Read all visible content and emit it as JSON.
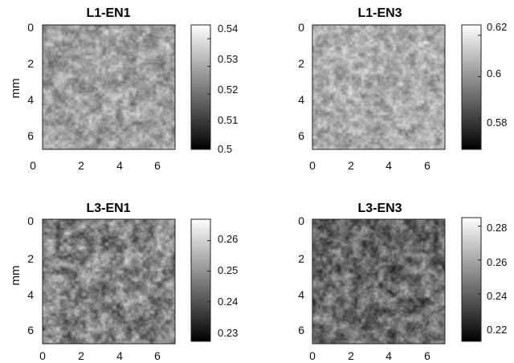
{
  "chart_data": [
    {
      "type": "heatmap",
      "title": "L1-EN1",
      "ylabel": "mm",
      "xlabel": "",
      "x_ticks": [
        "0",
        "2",
        "4",
        "6"
      ],
      "y_ticks": [
        "0",
        "2",
        "4",
        "6"
      ],
      "xlim": [
        0,
        7
      ],
      "ylim": [
        0,
        7
      ],
      "colormap": "gray",
      "clim": [
        0.5,
        0.545
      ],
      "colorbar_ticks": [
        "0.54",
        "0.53",
        "0.52",
        "0.51",
        "0.5"
      ],
      "colorbar_values": [
        0.54,
        0.53,
        0.52,
        0.51,
        0.5
      ],
      "texture": {
        "mean": 0.62,
        "spread": 0.15,
        "scale": 2.2,
        "seed": 11
      }
    },
    {
      "type": "heatmap",
      "title": "L1-EN3",
      "ylabel": "",
      "xlabel": "",
      "x_ticks": [
        "0",
        "2",
        "4",
        "6"
      ],
      "y_ticks": [
        "0",
        "2",
        "4",
        "6"
      ],
      "xlim": [
        0,
        7
      ],
      "ylim": [
        0,
        7
      ],
      "colormap": "gray",
      "clim": [
        0.565,
        0.625
      ],
      "colorbar_ticks": [
        "0.62",
        "0.6",
        "0.58"
      ],
      "colorbar_values": [
        0.62,
        0.6,
        0.58
      ],
      "texture": {
        "mean": 0.68,
        "spread": 0.14,
        "scale": 2.4,
        "seed": 23
      }
    },
    {
      "type": "heatmap",
      "title": "L3-EN1",
      "ylabel": "mm",
      "xlabel": "",
      "x_ticks": [
        "0",
        "2",
        "4",
        "6"
      ],
      "y_ticks": [
        "0",
        "2",
        "4",
        "6"
      ],
      "xlim": [
        0,
        7
      ],
      "ylim": [
        0,
        7
      ],
      "colormap": "gray",
      "clim": [
        0.227,
        0.267
      ],
      "colorbar_ticks": [
        "0.26",
        "0.25",
        "0.24",
        "0.23"
      ],
      "colorbar_values": [
        0.26,
        0.25,
        0.24,
        0.23
      ],
      "texture": {
        "mean": 0.52,
        "spread": 0.2,
        "scale": 2.0,
        "seed": 37
      }
    },
    {
      "type": "heatmap",
      "title": "L3-EN3",
      "ylabel": "",
      "xlabel": "",
      "x_ticks": [
        "0",
        "2",
        "4",
        "6"
      ],
      "y_ticks": [
        "0",
        "2",
        "4",
        "6"
      ],
      "xlim": [
        0,
        7
      ],
      "ylim": [
        0,
        7
      ],
      "colormap": "gray",
      "clim": [
        0.212,
        0.285
      ],
      "colorbar_ticks": [
        "0.28",
        "0.26",
        "0.24",
        "0.22"
      ],
      "colorbar_values": [
        0.28,
        0.26,
        0.24,
        0.22
      ],
      "texture": {
        "mean": 0.42,
        "spread": 0.2,
        "scale": 1.8,
        "seed": 53
      }
    }
  ]
}
